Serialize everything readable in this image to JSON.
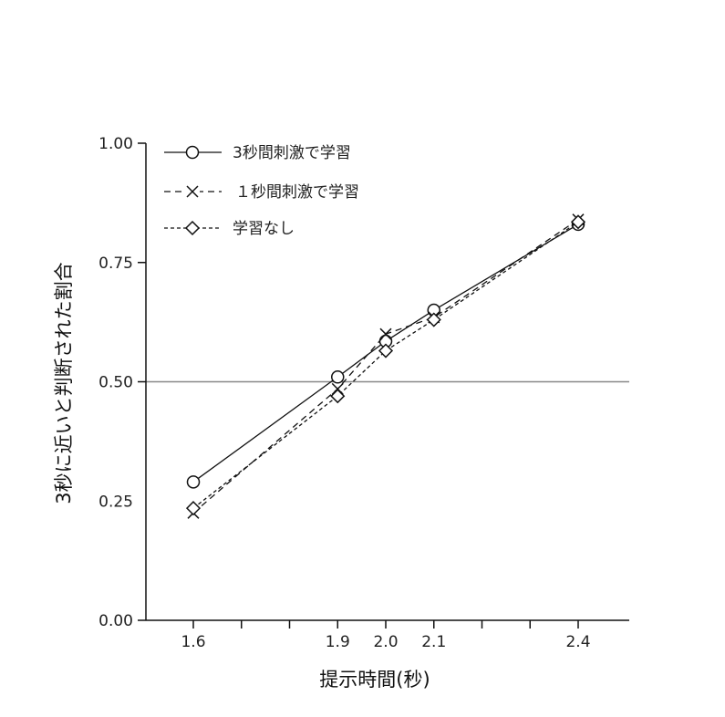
{
  "chart_data": {
    "type": "line",
    "title": "",
    "xlabel": "提示時間(秒)",
    "ylabel": "3秒に近いと判断された割合",
    "xlim": [
      1.55,
      2.5
    ],
    "ylim": [
      0.0,
      1.0
    ],
    "x_ticks": [
      1.6,
      1.7,
      1.8,
      1.9,
      2.0,
      2.1,
      2.2,
      2.3,
      2.4
    ],
    "x_tick_labels": [
      {
        "value": 1.6,
        "label": "1.6"
      },
      {
        "value": 1.9,
        "label": "1.9"
      },
      {
        "value": 2.0,
        "label": "2.0"
      },
      {
        "value": 2.1,
        "label": "2.1"
      },
      {
        "value": 2.4,
        "label": "2.4"
      }
    ],
    "y_ticks": [
      {
        "value": 1.0,
        "label": "1.00",
        "tick": true
      },
      {
        "value": 0.75,
        "label": "0.75",
        "tick": true
      },
      {
        "value": 0.5,
        "label": "0.50",
        "tick": true
      },
      {
        "value": 0.25,
        "label": "0.25",
        "tick": false
      },
      {
        "value": 0.0,
        "label": "0.00",
        "tick": true
      }
    ],
    "reference_line": {
      "y": 0.5,
      "color": "#888888"
    },
    "grid": false,
    "legend_position": "upper-left",
    "x": [
      1.6,
      1.9,
      2.0,
      2.1,
      2.4
    ],
    "series": [
      {
        "name": "3秒間刺激で学習",
        "legend_label": "3秒間刺激で学習",
        "marker": "circle",
        "line": "solid",
        "values": [
          0.29,
          0.51,
          0.585,
          0.65,
          0.83
        ]
      },
      {
        "name": "1秒間刺激で学習",
        "legend_label": "１秒間刺激で学習",
        "marker": "x",
        "line": "dashed",
        "values": [
          0.225,
          0.485,
          0.6,
          0.635,
          0.84
        ]
      },
      {
        "name": "学習なし",
        "legend_label": "学習なし",
        "marker": "diamond",
        "line": "dotted",
        "values": [
          0.235,
          0.47,
          0.565,
          0.63,
          0.835
        ]
      }
    ]
  }
}
